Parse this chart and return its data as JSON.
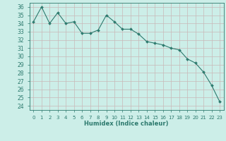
{
  "x": [
    0,
    1,
    2,
    3,
    4,
    5,
    6,
    7,
    8,
    9,
    10,
    11,
    12,
    13,
    14,
    15,
    16,
    17,
    18,
    19,
    20,
    21,
    22,
    23
  ],
  "y": [
    34.2,
    36.0,
    34.0,
    35.3,
    34.0,
    34.2,
    32.8,
    32.8,
    33.2,
    35.0,
    34.2,
    33.3,
    33.3,
    32.7,
    31.8,
    31.6,
    31.4,
    31.0,
    30.8,
    29.7,
    29.2,
    28.1,
    26.5,
    24.5
  ],
  "line_color": "#2d7a6e",
  "marker": "D",
  "markersize": 2.0,
  "linewidth": 0.8,
  "xlabel": "Humidex (Indice chaleur)",
  "xlim": [
    -0.5,
    23.5
  ],
  "ylim": [
    23.5,
    36.5
  ],
  "yticks": [
    24,
    25,
    26,
    27,
    28,
    29,
    30,
    31,
    32,
    33,
    34,
    35,
    36
  ],
  "xticks": [
    0,
    1,
    2,
    3,
    4,
    5,
    6,
    7,
    8,
    9,
    10,
    11,
    12,
    13,
    14,
    15,
    16,
    17,
    18,
    19,
    20,
    21,
    22,
    23
  ],
  "bg_color": "#cceee8",
  "grid_color": "#c8b8b8",
  "tick_color": "#2d7a6e",
  "label_color": "#2d7a6e",
  "xlabel_fontsize": 6.0,
  "tick_fontsize": 5.0,
  "ytick_fontsize": 5.5
}
